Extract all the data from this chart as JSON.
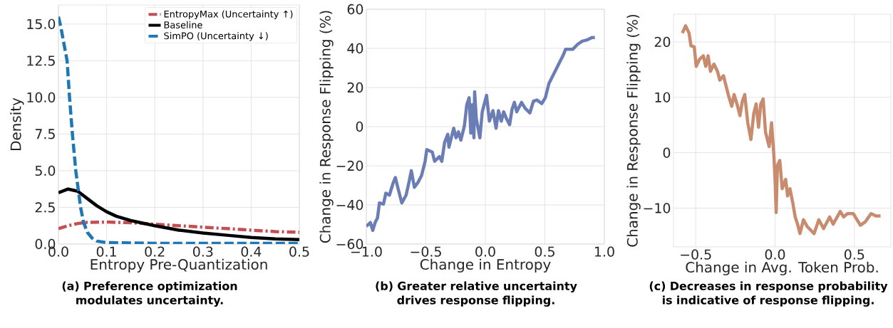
{
  "chart_data": [
    {
      "type": "line",
      "xlabel": "Entropy Pre-Quantization",
      "ylabel": "Density",
      "xlim": [
        0,
        0.5
      ],
      "ylim": [
        0,
        16.3
      ],
      "xticks": [
        {
          "value": 0,
          "label": "0.0"
        },
        0.1,
        0.2,
        0.3,
        0.4,
        0.5
      ],
      "yticks": [
        {
          "value": 0,
          "label": "0.0"
        },
        2.5,
        {
          "value": 5,
          "label": "5.0"
        },
        7.5,
        {
          "value": 10,
          "label": "10.0"
        },
        12.5,
        {
          "value": 15,
          "label": "15.0"
        }
      ],
      "grid": true,
      "legend": "top right",
      "series": [
        {
          "name": "EntropyMax (Uncertainty ↑)",
          "color": "#c44e52",
          "line_style": "dashdot",
          "x": [
            0,
            0.02,
            0.04,
            0.06,
            0.1,
            0.15,
            0.2,
            0.25,
            0.3,
            0.35,
            0.4,
            0.45,
            0.5
          ],
          "values": [
            1.05,
            1.25,
            1.4,
            1.48,
            1.5,
            1.45,
            1.35,
            1.25,
            1.15,
            1.05,
            0.95,
            0.85,
            0.8
          ]
        },
        {
          "name": "Baseline",
          "color": "#000000",
          "line_style": "solid",
          "x": [
            0,
            0.02,
            0.04,
            0.06,
            0.08,
            0.1,
            0.12,
            0.15,
            0.2,
            0.25,
            0.3,
            0.35,
            0.4,
            0.45,
            0.5
          ],
          "values": [
            3.5,
            3.75,
            3.6,
            3.1,
            2.6,
            2.2,
            1.9,
            1.6,
            1.25,
            0.95,
            0.75,
            0.6,
            0.45,
            0.35,
            0.3
          ]
        },
        {
          "name": "SimPO (Uncertainty ↓)",
          "color": "#1f77b4",
          "line_style": "dashed",
          "x": [
            0,
            0.005,
            0.01,
            0.018,
            0.023,
            0.029,
            0.036,
            0.046,
            0.052,
            0.06,
            0.07,
            0.08,
            0.1,
            0.2,
            0.3,
            0.4,
            0.5
          ],
          "values": [
            15.5,
            14.8,
            13.9,
            12.5,
            10,
            7.5,
            5,
            2.5,
            1.5,
            0.8,
            0.4,
            0.2,
            0.1,
            0.05,
            0.05,
            0.05,
            0.05
          ]
        }
      ],
      "annotations": [
        "(a) Preference optimization modulates uncertainty."
      ]
    },
    {
      "type": "line",
      "xlabel": "Change in Entropy",
      "ylabel": "Change in Response Flipping (%)",
      "xlim": [
        -1,
        1
      ],
      "ylim": [
        -60,
        60
      ],
      "xticks": [
        {
          "value": -1,
          "label": "−1.0"
        },
        {
          "value": -0.5,
          "label": "−0.5"
        },
        {
          "value": 0,
          "label": "0.0"
        },
        0.5,
        {
          "value": 1,
          "label": "1.0"
        }
      ],
      "yticks": [
        {
          "value": -60,
          "label": "−60"
        },
        {
          "value": -40,
          "label": "−40"
        },
        {
          "value": -20,
          "label": "−20"
        },
        0,
        20,
        40,
        60
      ],
      "grid": true,
      "series": [
        {
          "color": "#6a7db4",
          "line_style": "solid",
          "x": [
            -1.0,
            -0.966,
            -0.946,
            -0.926,
            -0.906,
            -0.89,
            -0.856,
            -0.836,
            -0.806,
            -0.776,
            -0.756,
            -0.736,
            -0.702,
            -0.666,
            -0.642,
            -0.622,
            -0.596,
            -0.566,
            -0.536,
            -0.506,
            -0.492,
            -0.446,
            -0.426,
            -0.386,
            -0.366,
            -0.342,
            -0.316,
            -0.306,
            -0.266,
            -0.246,
            -0.226,
            -0.206,
            -0.176,
            -0.156,
            -0.136,
            -0.122,
            -0.11,
            -0.096,
            -0.09,
            -0.076,
            -0.046,
            -0.026,
            0.01,
            0.034,
            0.064,
            0.09,
            0.11,
            0.134,
            0.154,
            0.178,
            0.204,
            0.224,
            0.244,
            0.264,
            0.304,
            0.334,
            0.374,
            0.404,
            0.434,
            0.474,
            0.504,
            0.534,
            0.564,
            0.594,
            0.624,
            0.654,
            0.674,
            0.734,
            0.774,
            0.814,
            0.854,
            0.894,
            0.92
          ],
          "values": [
            -51,
            -49,
            -53,
            -49,
            -46.6,
            -39,
            -39.6,
            -34,
            -35,
            -29,
            -26,
            -31,
            -39,
            -35,
            -28.5,
            -22.5,
            -31,
            -28.5,
            -25,
            -17.7,
            -11.7,
            -13,
            -17.7,
            -15.3,
            -17.7,
            -8,
            -3.9,
            -10.5,
            -0.8,
            -5.7,
            -2.7,
            -6.9,
            0.4,
            11.2,
            14.8,
            -3.3,
            11.2,
            -5.7,
            17.8,
            4,
            -5.7,
            7.6,
            16,
            2.8,
            8.2,
            -0.8,
            8.2,
            2.8,
            7.6,
            4,
            1,
            8.8,
            12.4,
            7.6,
            12.4,
            9.4,
            7,
            13,
            13.6,
            11.8,
            14.8,
            22,
            25.6,
            29.3,
            32.9,
            36.5,
            39.5,
            39.5,
            42,
            43.7,
            44.3,
            45.5,
            45.5
          ]
        }
      ],
      "annotations": [
        "(b) Greater relative uncertainty drives response flipping."
      ]
    },
    {
      "type": "line",
      "xlabel": "Change in Avg. Token Prob.",
      "ylabel": "Change in Response Flipping (%)",
      "xlim": [
        -0.64,
        0.73
      ],
      "ylim": [
        -17,
        25
      ],
      "xticks": [
        {
          "value": -0.5,
          "label": "−0.5"
        },
        {
          "value": 0,
          "label": "0.0"
        },
        0.5
      ],
      "yticks": [
        {
          "value": -10,
          "label": "−10"
        },
        0,
        10,
        20
      ],
      "grid": true,
      "series": [
        {
          "color": "#c88b6e",
          "line_style": "solid",
          "x": [
            -0.584,
            -0.564,
            -0.542,
            -0.53,
            -0.509,
            -0.497,
            -0.475,
            -0.452,
            -0.437,
            -0.422,
            -0.407,
            -0.385,
            -0.363,
            -0.348,
            -0.325,
            -0.31,
            -0.295,
            -0.273,
            -0.258,
            -0.236,
            -0.221,
            -0.206,
            -0.191,
            -0.172,
            -0.152,
            -0.134,
            -0.119,
            -0.104,
            -0.09,
            -0.075,
            -0.06,
            -0.037,
            -0.022,
            -0.007,
            0.0,
            0.007,
            0.015,
            0.03,
            0.045,
            0.067,
            0.079,
            0.094,
            0.112,
            0.127,
            0.142,
            0.157,
            0.179,
            0.202,
            0.246,
            0.276,
            0.306,
            0.344,
            0.366,
            0.411,
            0.433,
            0.456,
            0.493,
            0.538,
            0.568,
            0.605,
            0.635,
            0.665
          ],
          "values": [
            21.6,
            22.9,
            21.6,
            19.3,
            19.1,
            15.6,
            16.9,
            17.5,
            15.6,
            17.5,
            14.7,
            16,
            14.7,
            13.1,
            13.9,
            12.2,
            10.5,
            8.4,
            10.5,
            8.4,
            6.7,
            9.3,
            10.5,
            5.4,
            2.4,
            7.1,
            8.8,
            4.6,
            8.8,
            9.7,
            3.7,
            1.1,
            5.4,
            -0.6,
            -4.8,
            -10.8,
            -2.3,
            -1.4,
            -6.5,
            -4.8,
            -7.8,
            -6.5,
            -9.1,
            -11.6,
            -12.9,
            -14.6,
            -12.1,
            -13.3,
            -14.6,
            -12.1,
            -13.7,
            -11.6,
            -12.9,
            -10.6,
            -11.6,
            -11,
            -11,
            -13.1,
            -12.5,
            -11,
            -11.4,
            -11.4
          ]
        }
      ],
      "annotations": [
        "(c) Decreases in response probability is indicative of response flipping."
      ]
    }
  ]
}
